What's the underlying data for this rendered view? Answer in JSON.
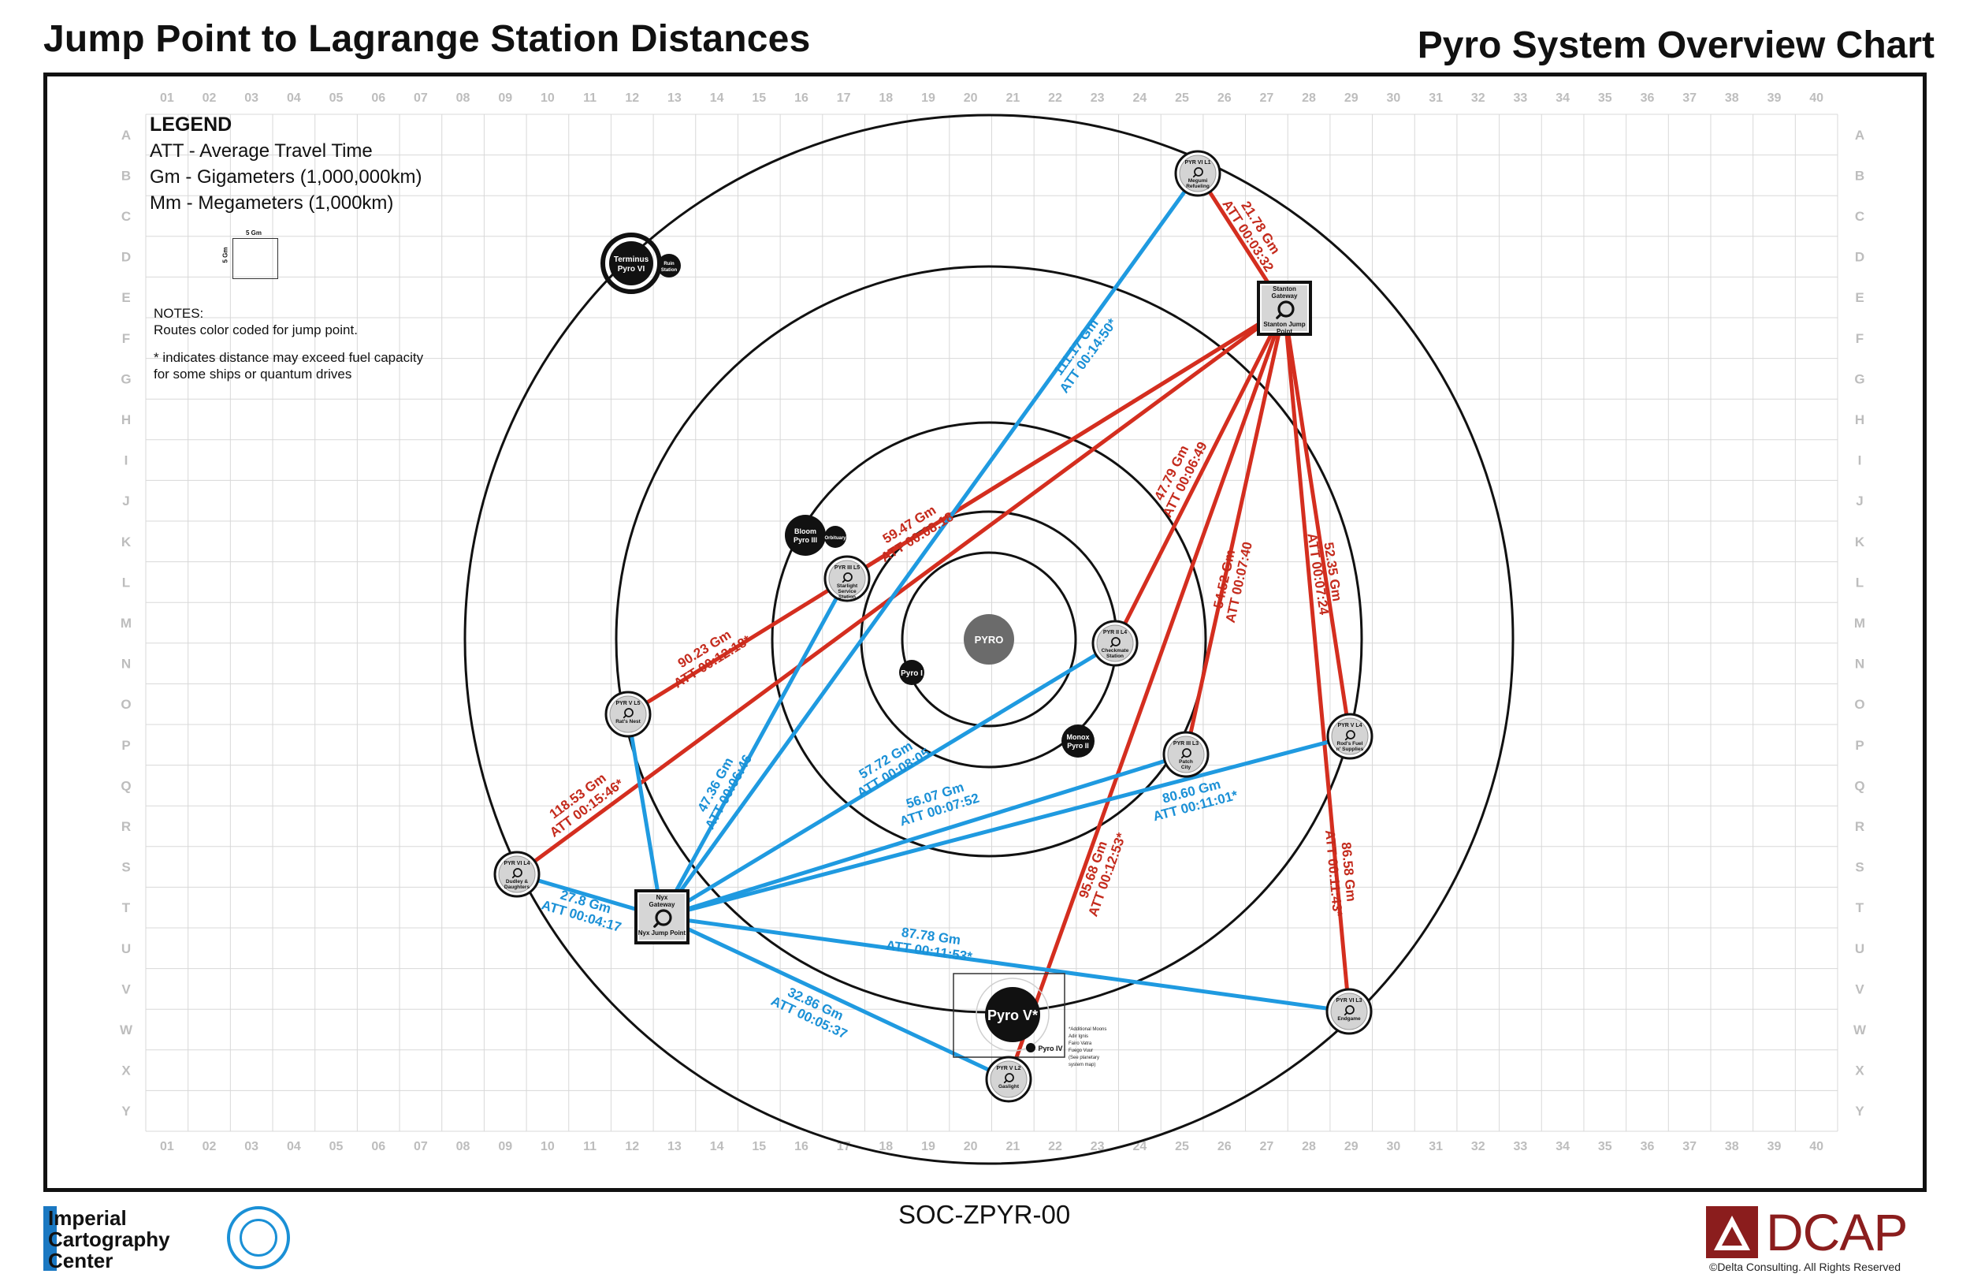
{
  "header": {
    "left_title": "Jump Point to Lagrange Station Distances",
    "right_title": "Pyro System Overview Chart"
  },
  "legend": {
    "title": "LEGEND",
    "entries": [
      "ATT - Average Travel Time",
      "Gm - Gigameters (1,000,000km)",
      "Mm - Megameters (1,000km)"
    ],
    "scale_label": "5 Gm"
  },
  "notes": {
    "title": "NOTES:",
    "lines": [
      "Routes color coded for jump point.",
      "* indicates distance may exceed fuel capacity",
      "for some ships or quantum drives"
    ]
  },
  "grid": {
    "columns": [
      "01",
      "02",
      "03",
      "04",
      "05",
      "06",
      "07",
      "08",
      "09",
      "10",
      "11",
      "12",
      "13",
      "14",
      "15",
      "16",
      "17",
      "18",
      "19",
      "20",
      "21",
      "22",
      "23",
      "24",
      "25",
      "26",
      "27",
      "28",
      "29",
      "30",
      "31",
      "32",
      "33",
      "34",
      "35",
      "36",
      "37",
      "38",
      "39",
      "40"
    ],
    "rows": [
      "A",
      "B",
      "C",
      "D",
      "E",
      "F",
      "G",
      "H",
      "I",
      "J",
      "K",
      "L",
      "M",
      "N",
      "O",
      "P",
      "Q",
      "R",
      "S",
      "T",
      "U",
      "V",
      "W",
      "X",
      "Y"
    ]
  },
  "colors": {
    "stanton_route": "#d42e1f",
    "nyx_route": "#1f9ae0",
    "grid": "#d8d8d8"
  },
  "bodies": {
    "star": "PYRO",
    "pyro1": "Pyro I",
    "monox": [
      "Monox",
      "Pyro II"
    ],
    "bloom": [
      "Bloom",
      "Pyro III"
    ],
    "orbituary": "Orbituary",
    "terminus": [
      "Terminus",
      "Pyro VI"
    ],
    "ruin": [
      "Ruin",
      "Station"
    ],
    "pyro5": "Pyro V*",
    "pyro4": "Pyro IV",
    "pyro5_note": [
      "*Additional Moons",
      "Adir      Ignis",
      "Fairo     Vatra",
      "Fuego    Vuur",
      "(See planetary",
      "system map)"
    ]
  },
  "stations": {
    "vi_l1": [
      "PYR VI L1",
      "Megumi",
      "Refueling"
    ],
    "iii_l5": [
      "PYR III L5",
      "Starlight",
      "Service",
      "Station"
    ],
    "ii_l4": [
      "PYR II L4",
      "Checkmate",
      "Station"
    ],
    "v_l5": [
      "PYR V L5",
      "Rat's Nest"
    ],
    "iii_l3": [
      "PYR III L3",
      "Patch",
      "City"
    ],
    "v_l4": [
      "PYR V L4",
      "Rod's Fuel",
      "n' Supplies"
    ],
    "vi_l4": [
      "PYR VI L4",
      "Dudley &",
      "Daughters"
    ],
    "vi_l3": [
      "PYR VI L3",
      "Endgame"
    ],
    "v_l2": [
      "PYR V L2",
      "Gaslight"
    ]
  },
  "gateways": {
    "stanton": [
      "Stanton",
      "Gateway",
      "Stanton Jump",
      "Point"
    ],
    "nyx": [
      "Nyx",
      "Gateway",
      "Nyx Jump Point"
    ]
  },
  "routes": [
    {
      "from": "stanton",
      "to": "vi_l1",
      "dist": "21.78 Gm",
      "att": "ATT 00:03:32",
      "color": "red"
    },
    {
      "from": "stanton",
      "to": "iii_l5",
      "dist": "59.47 Gm",
      "att": "ATT 00:08:18",
      "color": "red"
    },
    {
      "from": "stanton",
      "to": "v_l5",
      "dist": "90.23 Gm",
      "att": "ATT 00:12:18*",
      "color": "red"
    },
    {
      "from": "stanton",
      "to": "vi_l4",
      "dist": "118.53 Gm",
      "att": "ATT 00:15:46*",
      "color": "red"
    },
    {
      "from": "stanton",
      "to": "ii_l4",
      "dist": "47.79 Gm",
      "att": "ATT 00:06:49",
      "color": "red"
    },
    {
      "from": "stanton",
      "to": "iii_l3",
      "dist": "54.52 Gm",
      "att": "ATT 00:07:40",
      "color": "red"
    },
    {
      "from": "stanton",
      "to": "v_l4",
      "dist": "52.35 Gm",
      "att": "ATT 00:07:24",
      "color": "red"
    },
    {
      "from": "stanton",
      "to": "v_l2",
      "dist": "95.68 Gm",
      "att": "ATT 00:12:53*",
      "color": "red"
    },
    {
      "from": "stanton",
      "to": "vi_l3",
      "dist": "86.58 Gm",
      "att": "ATT 00:11:43*",
      "color": "red"
    },
    {
      "from": "nyx",
      "to": "vi_l1",
      "dist": "111.17 Gm",
      "att": "ATT 00:14:50*",
      "color": "blue"
    },
    {
      "from": "nyx",
      "to": "iii_l5",
      "dist": "47.36 Gm",
      "att": "ATT 00:06:46",
      "color": "blue"
    },
    {
      "from": "nyx",
      "to": "v_l5",
      "dist": "",
      "att": "",
      "color": "blue"
    },
    {
      "from": "nyx",
      "to": "ii_l4",
      "dist": "57.72 Gm",
      "att": "ATT 00:08:05",
      "color": "blue"
    },
    {
      "from": "nyx",
      "to": "iii_l3",
      "dist": "56.07 Gm",
      "att": "ATT 00:07:52",
      "color": "blue"
    },
    {
      "from": "nyx",
      "to": "v_l4",
      "dist": "80.60 Gm",
      "att": "ATT 00:11:01*",
      "color": "blue"
    },
    {
      "from": "nyx",
      "to": "vi_l4",
      "dist": "27.8 Gm",
      "att": "ATT 00:04:17",
      "color": "blue"
    },
    {
      "from": "nyx",
      "to": "vi_l3",
      "dist": "87.78 Gm",
      "att": "ATT 00:11:53*",
      "color": "blue"
    },
    {
      "from": "nyx",
      "to": "v_l2",
      "dist": "32.86 Gm",
      "att": "ATT 00:05:37",
      "color": "blue"
    }
  ],
  "footer": {
    "doc_code": "SOC-ZPYR-00",
    "icc_lines": [
      "Imperial",
      "Cartography",
      "Center"
    ],
    "dcap_word": "DCAP",
    "dcap_copy": "©Delta Consulting.  All Rights Reserved"
  }
}
